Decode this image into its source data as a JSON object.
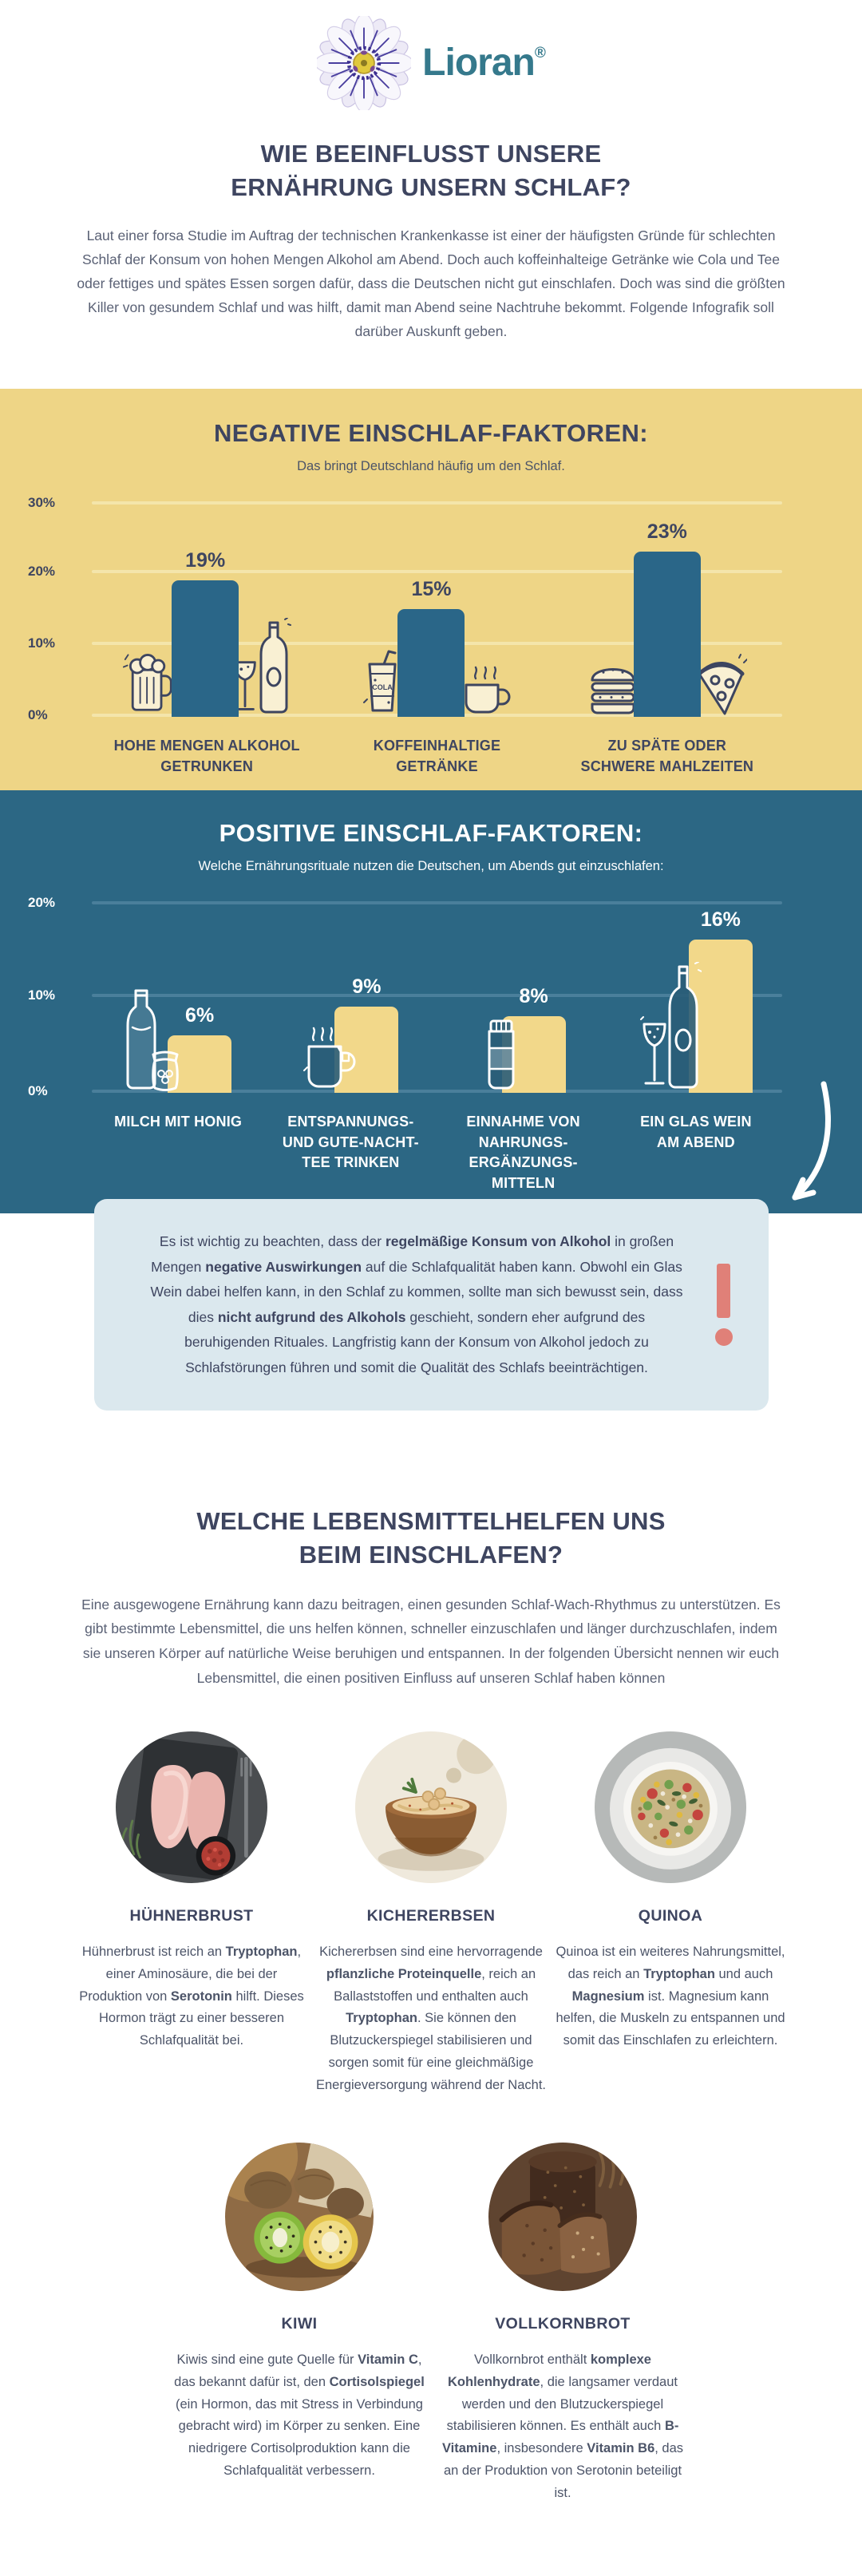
{
  "brand": {
    "name": "Lioran",
    "registered": "®"
  },
  "header": {
    "title_lines": [
      "WIE BEEINFLUSST UNSERE",
      "ERNÄHRUNG UNSERN SCHLAF?"
    ],
    "intro": "Laut einer forsa Studie im Auftrag der technischen Krankenkasse ist einer der häufigsten Gründe für schlechten Schlaf der Konsum von hohen Mengen Alkohol am Abend. Doch auch koffeinhalteige Getränke wie Cola und Tee oder fettiges und spätes Essen sorgen dafür, dass die Deutschen nicht gut einschlafen. Doch was sind die größten Killer von gesundem Schlaf und was hilft, damit man Abend seine Nachtruhe bekommt. Folgende Infografik soll darüber Auskunft geben."
  },
  "colors": {
    "brand_teal": "#35798c",
    "heading_navy": "#3e4560",
    "body_text": "#5a6175",
    "yellow_bg": "#eed586",
    "bar_blue": "#2a6688",
    "blue_bg": "#2c6784",
    "bar_yellow": "#f2d88a",
    "warning_bg": "#dbe8ee",
    "warning_accent": "#e08078"
  },
  "chart_data": [
    {
      "type": "bar",
      "title": "NEGATIVE EINSCHLAF-FAKTOREN:",
      "subtitle": "Das bringt Deutschland häufig um den Schlaf.",
      "categories": [
        "HOHE MENGEN ALKOHOL GETRUNKEN",
        "KOFFEINHALTIGE GETRÄNKE",
        "ZU SPÄTE ODER SCHWERE MAHLZEITEN"
      ],
      "values": [
        19,
        15,
        23
      ],
      "unit": "%",
      "ylim": [
        0,
        30
      ],
      "yticks": [
        "30%",
        "20%",
        "10%",
        "0%"
      ],
      "grid": true,
      "legend": "none",
      "bar_color": "#2a6688",
      "background": "#eed586",
      "cola_label": "COLA"
    },
    {
      "type": "bar",
      "title": "POSITIVE EINSCHLAF-FAKTOREN:",
      "subtitle": "Welche Ernährungsrituale nutzen die Deutschen, um Abends gut einzuschlafen:",
      "categories": [
        "MILCH MIT HONIG",
        "ENTSPANNUNGS- UND GUTE-NACHT-TEE TRINKEN",
        "EINNAHME VON NAHRUNGS-ERGÄNZUNGS-MITTELN",
        "EIN GLAS WEIN AM ABEND"
      ],
      "values": [
        6,
        9,
        8,
        16
      ],
      "unit": "%",
      "ylim": [
        0,
        20
      ],
      "yticks": [
        "20%",
        "10%",
        "0%"
      ],
      "grid": true,
      "legend": "none",
      "bar_color": "#f2d88a",
      "background": "#2c6784"
    }
  ],
  "warning": {
    "segments": [
      {
        "text": "Es ist wichtig zu beachten, dass der ",
        "bold": false
      },
      {
        "text": "regelmäßige Konsum von Alkohol",
        "bold": true
      },
      {
        "text": " in großen Mengen ",
        "bold": false
      },
      {
        "text": "negative Auswirkungen",
        "bold": true
      },
      {
        "text": " auf die Schlafqualität haben kann. Obwohl ein Glas Wein dabei helfen kann, in den Schlaf zu kommen, sollte man sich bewusst sein, dass dies ",
        "bold": false
      },
      {
        "text": "nicht aufgrund des Alkohols",
        "bold": true
      },
      {
        "text": " geschieht, sondern eher aufgrund des beruhigenden Rituales. Langfristig kann der Konsum von Alkohol jedoch zu Schlafstörungen führen und somit die Qualität des Schlafs beeinträchtigen.",
        "bold": false
      }
    ]
  },
  "foods": {
    "title_lines": [
      "WELCHE LEBENSMITTELHELFEN UNS",
      "BEIM EINSCHLAFEN?"
    ],
    "intro": "Eine ausgewogene Ernährung kann dazu beitragen, einen gesunden Schlaf-Wach-Rhythmus zu unterstützen. Es gibt bestimmte Lebensmittel, die uns helfen können, schneller einzuschlafen und länger durchzuschlafen, indem sie unseren Körper auf natürliche Weise beruhigen und entspannen. In der folgenden Übersicht nennen wir euch Lebensmittel, die einen positiven Einfluss auf unseren Schlaf haben können",
    "items": [
      {
        "name": "HÜHNERBRUST",
        "photo": "chicken-breast",
        "segments": [
          {
            "text": "Hühnerbrust ist reich an ",
            "bold": false
          },
          {
            "text": "Tryptophan",
            "bold": true
          },
          {
            "text": ", einer Aminosäure, die bei der Produktion von ",
            "bold": false
          },
          {
            "text": "Serotonin",
            "bold": true
          },
          {
            "text": " hilft. Dieses Hormon trägt zu einer besseren Schlafqualität bei.",
            "bold": false
          }
        ]
      },
      {
        "name": "KICHERERBSEN",
        "photo": "hummus-bowl",
        "segments": [
          {
            "text": "Kichererbsen sind eine hervorragende ",
            "bold": false
          },
          {
            "text": "pflanzliche Proteinquelle",
            "bold": true
          },
          {
            "text": ", reich an Ballaststoffen und enthalten auch ",
            "bold": false
          },
          {
            "text": "Tryptophan",
            "bold": true
          },
          {
            "text": ". Sie können den Blutzuckerspiegel stabilisieren und sorgen somit für eine gleichmäßige Energieversorgung während der Nacht.",
            "bold": false
          }
        ]
      },
      {
        "name": "QUINOA",
        "photo": "quinoa-salad",
        "segments": [
          {
            "text": "Quinoa ist ein weiteres Nahrungsmittel, das reich an ",
            "bold": false
          },
          {
            "text": "Tryptophan",
            "bold": true
          },
          {
            "text": " und auch ",
            "bold": false
          },
          {
            "text": "Magnesium",
            "bold": true
          },
          {
            "text": " ist. Magnesium kann helfen, die Muskeln zu entspannen und somit das Einschlafen zu erleichtern.",
            "bold": false
          }
        ]
      },
      {
        "name": "KIWI",
        "photo": "kiwi-fruits",
        "segments": [
          {
            "text": "Kiwis sind eine gute Quelle für ",
            "bold": false
          },
          {
            "text": "Vitamin C",
            "bold": true
          },
          {
            "text": ", das bekannt dafür ist, den ",
            "bold": false
          },
          {
            "text": "Cortisolspiegel",
            "bold": true
          },
          {
            "text": " (ein Hormon, das mit Stress in Verbindung gebracht wird) im Körper zu senken. Eine niedrigere Cortisolproduktion kann die Schlafqualität verbessern.",
            "bold": false
          }
        ]
      },
      {
        "name": "VOLLKORNBROT",
        "photo": "wholegrain-bread",
        "segments": [
          {
            "text": "Vollkornbrot enthält ",
            "bold": false
          },
          {
            "text": "komplexe Kohlenhydrate",
            "bold": true
          },
          {
            "text": ", die langsamer verdaut werden und den Blutzuckerspiegel stabilisieren können. Es enthält auch ",
            "bold": false
          },
          {
            "text": "B-Vitamine",
            "bold": true
          },
          {
            "text": ", insbesondere ",
            "bold": false
          },
          {
            "text": "Vitamin B6",
            "bold": true
          },
          {
            "text": ", das an der Produktion von Serotonin beteiligt ist.",
            "bold": false
          }
        ]
      }
    ]
  }
}
